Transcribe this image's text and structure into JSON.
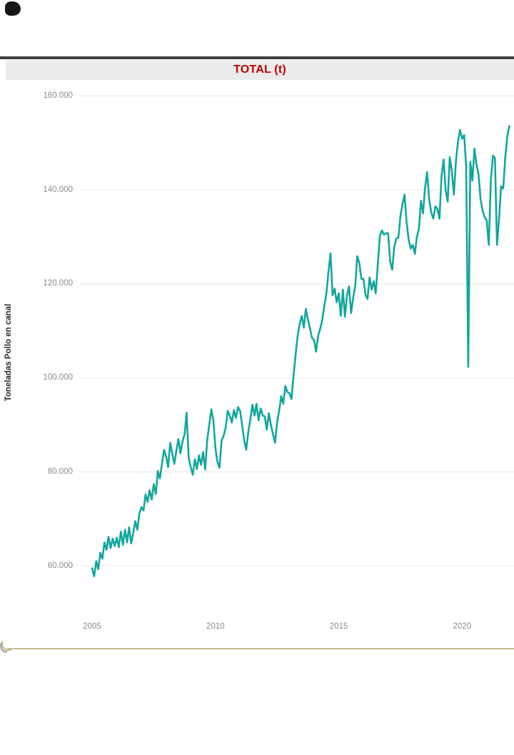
{
  "title_bar": {
    "text": "TOTAL (t)",
    "text_color": "#c00000",
    "bg_color": "#ebebeb"
  },
  "chart_data": {
    "type": "line",
    "title": "TOTAL (t)",
    "ylabel": "Toneladas Pollo en canal",
    "unit": "t",
    "x_start_year": 2005,
    "points_per_year": 12,
    "x_tick_years": [
      2005,
      2010,
      2015,
      2020
    ],
    "x_tick_labels": [
      "2005",
      "2010",
      "2015",
      "2020"
    ],
    "y_ticks": [
      160000,
      140000,
      120000,
      100000,
      80000,
      60000
    ],
    "y_tick_labels": [
      "160.000",
      "140.000",
      "120.000",
      "100.000",
      "80.000",
      "60.000"
    ],
    "ylim": [
      60000,
      160000
    ],
    "grid": true,
    "grid_color": "#e8e8e8",
    "line_color": "#12a79b",
    "legend": "none",
    "values": [
      59500,
      57800,
      61000,
      59300,
      62800,
      61500,
      65000,
      63400,
      66200,
      63800,
      65800,
      64200,
      66000,
      64000,
      67300,
      64500,
      67700,
      65000,
      68200,
      64800,
      67000,
      69500,
      67700,
      71100,
      72500,
      71800,
      75200,
      73600,
      76100,
      74100,
      77400,
      75300,
      80200,
      78600,
      81700,
      84700,
      83200,
      81000,
      86200,
      83900,
      81700,
      84500,
      87000,
      84000,
      86500,
      88000,
      92600,
      83000,
      81000,
      79400,
      82700,
      80600,
      83500,
      81500,
      84200,
      80500,
      86700,
      90000,
      93300,
      91000,
      85000,
      82100,
      80900,
      86700,
      87700,
      89500,
      93000,
      92000,
      90500,
      93200,
      91500,
      93800,
      93000,
      90000,
      86700,
      84700,
      88500,
      91200,
      94300,
      92000,
      94500,
      91000,
      93500,
      92000,
      91800,
      89000,
      92500,
      90000,
      88000,
      86200,
      90500,
      93000,
      96100,
      94500,
      98300,
      97000,
      96800,
      95500,
      100500,
      105000,
      108900,
      111500,
      113200,
      110700,
      114700,
      112500,
      110500,
      108500,
      108000,
      105600,
      109000,
      110500,
      112400,
      115500,
      118000,
      122500,
      126500,
      117600,
      119000,
      116100,
      118000,
      113200,
      118800,
      113000,
      117500,
      119500,
      113800,
      117000,
      119500,
      125900,
      124500,
      121100,
      121100,
      117700,
      116800,
      121400,
      118800,
      120600,
      118000,
      124100,
      130200,
      131400,
      130500,
      130800,
      130800,
      124800,
      123000,
      127900,
      129700,
      129800,
      134400,
      137000,
      139000,
      133200,
      129500,
      127500,
      128300,
      126400,
      130000,
      131700,
      137700,
      135000,
      140500,
      143800,
      138000,
      135200,
      133900,
      136500,
      136000,
      133900,
      143000,
      146500,
      140000,
      137500,
      147000,
      144000,
      139000,
      146000,
      150300,
      152800,
      150900,
      151700,
      145000,
      102400,
      146000,
      142000,
      148800,
      145500,
      143300,
      138000,
      135500,
      134200,
      133500,
      128300,
      142000,
      147300,
      146800,
      128300,
      134000,
      140800,
      140300,
      146800,
      151400,
      153600
    ]
  }
}
